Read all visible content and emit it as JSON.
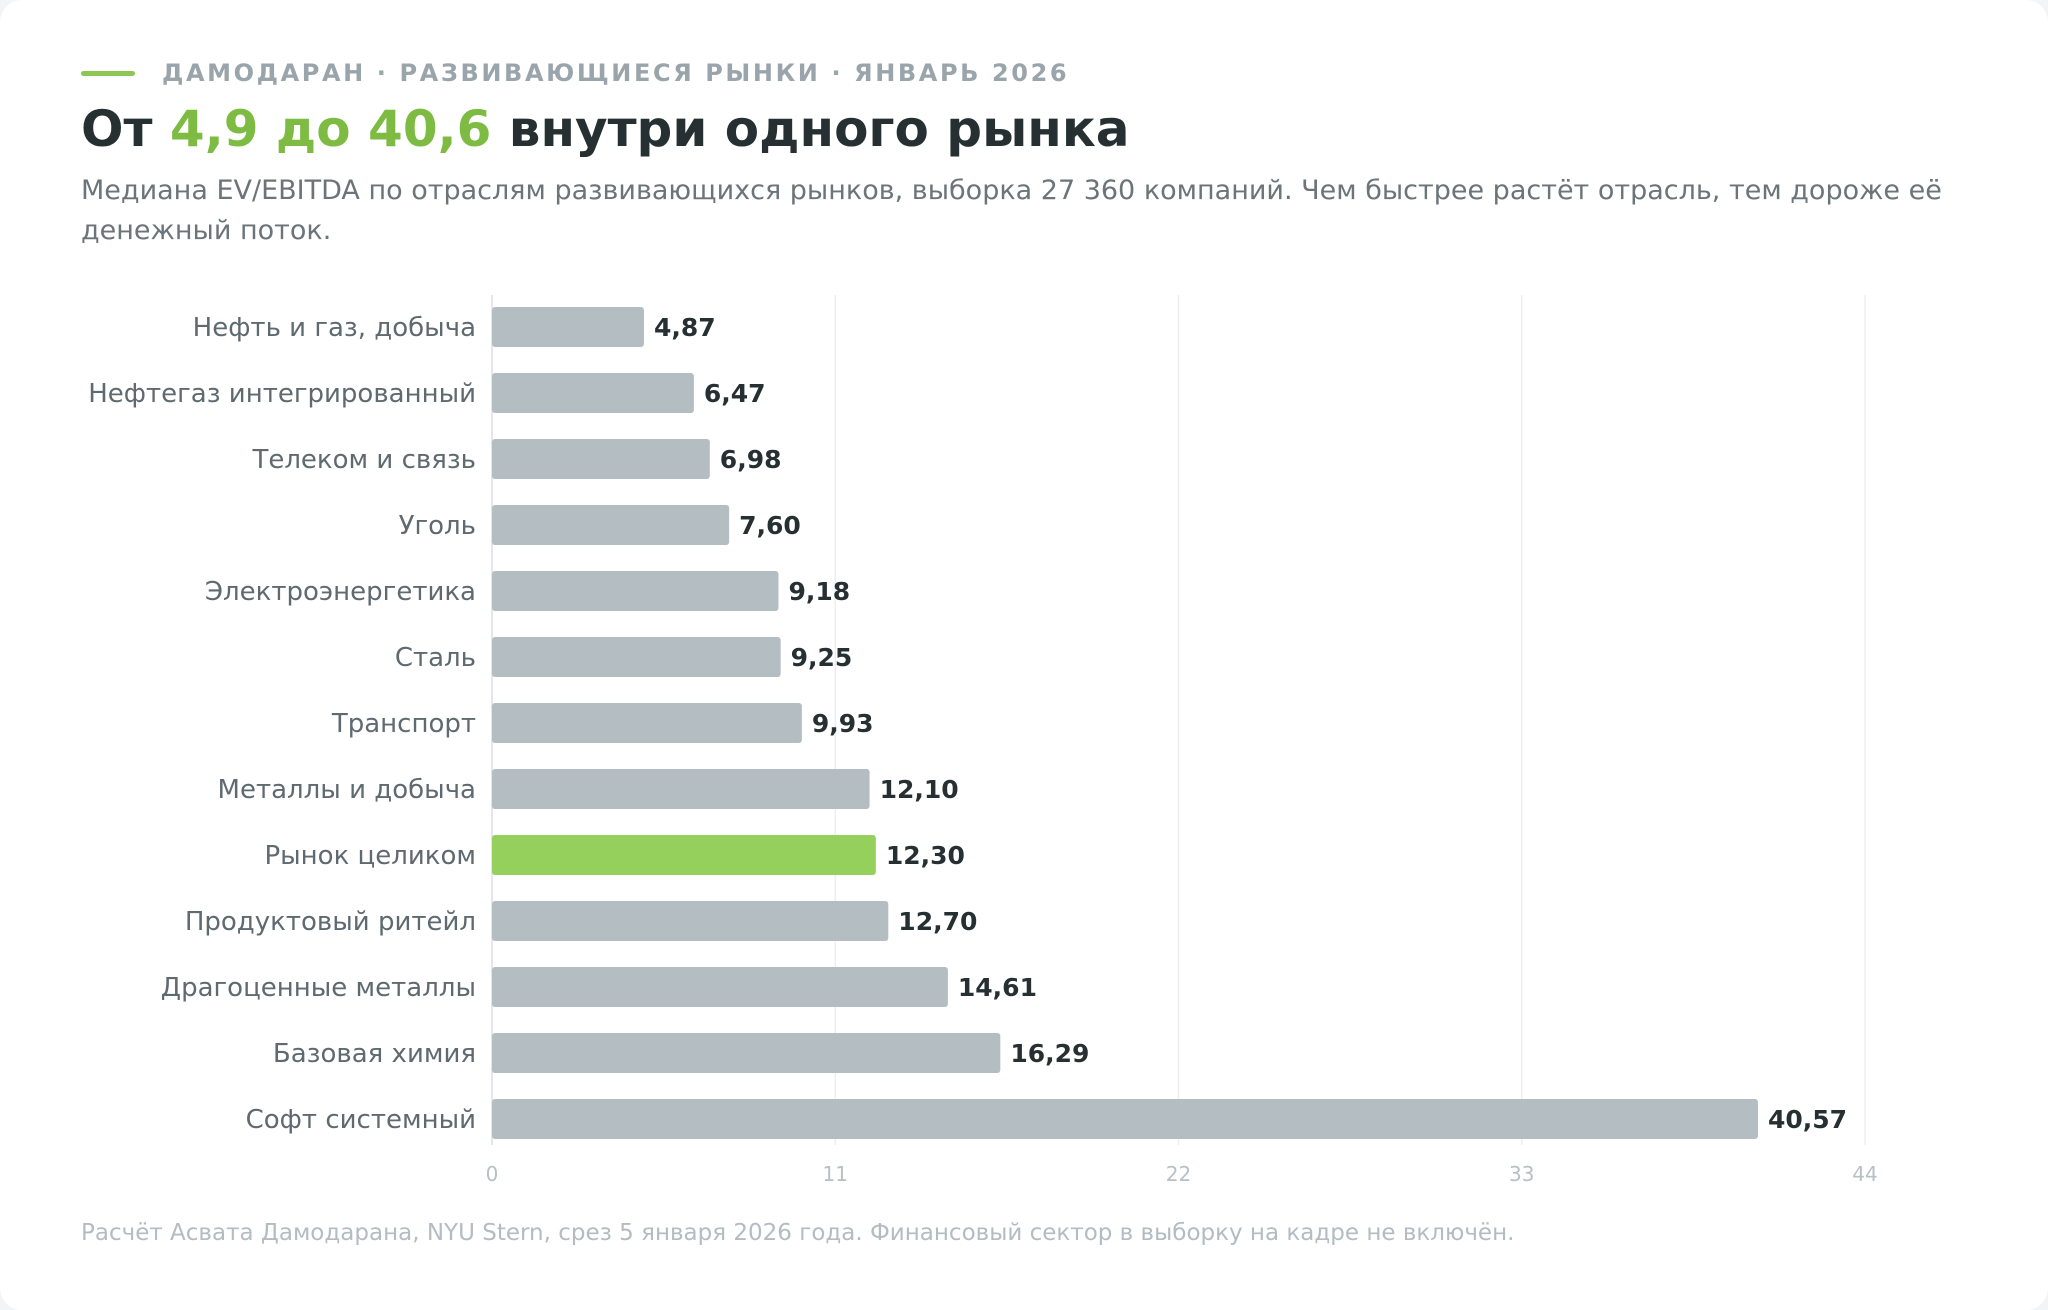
{
  "header": {
    "eyebrow": "ДАМОДАРАН · РАЗВИВАЮЩИЕСЯ РЫНКИ · ЯНВАРЬ 2026",
    "title_prefix": "От ",
    "title_accent": "4,9 до 40,6",
    "title_suffix": " внутри одного рынка",
    "subtitle": "Медиана EV/EBITDA по отраслям развивающихся рынков, выборка 27 360 компаний. Чем быстрее растёт отрасль, тем дороже её денежный поток."
  },
  "footer": {
    "note": "Расчёт Асвата Дамодарана, NYU Stern, срез 5 января 2026 года. Финансовый сектор в выборку на кадре не включён."
  },
  "colors": {
    "bar": "#b3bdc2",
    "highlight": "#95cf5c",
    "accent_text": "#7dbb42",
    "grid": "#eceff1"
  },
  "chart_data": {
    "type": "bar",
    "orientation": "horizontal",
    "title": "",
    "xlabel": "",
    "ylabel": "",
    "categories": [
      "Нефть и газ, добыча",
      "Нефтегаз интегрированный",
      "Телеком и связь",
      "Уголь",
      "Электроэнергетика",
      "Сталь",
      "Транспорт",
      "Металлы и добыча",
      "Рынок целиком",
      "Продуктовый ритейл",
      "Драгоценные металлы",
      "Базовая химия",
      "Софт системный"
    ],
    "values": [
      4.87,
      6.47,
      6.98,
      7.6,
      9.18,
      9.25,
      9.93,
      12.1,
      12.3,
      12.7,
      14.61,
      16.29,
      40.57
    ],
    "value_labels": [
      "4,87",
      "6,47",
      "6,98",
      "7,60",
      "9,18",
      "9,25",
      "9,93",
      "12,10",
      "12,30",
      "12,70",
      "14,61",
      "16,29",
      "40,57"
    ],
    "highlight_category": "Рынок целиком",
    "xlim": [
      0,
      44
    ],
    "xticks": [
      0,
      11,
      22,
      33,
      44
    ],
    "xtick_labels": [
      "0",
      "11",
      "22",
      "33",
      "44"
    ],
    "grid": true
  }
}
